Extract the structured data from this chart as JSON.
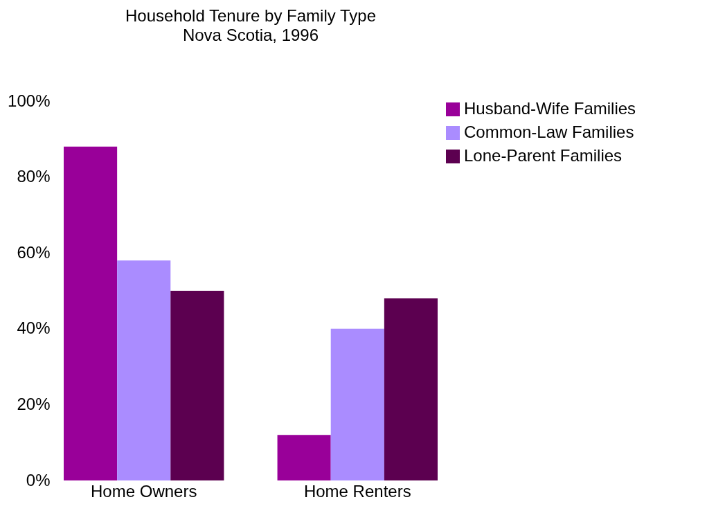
{
  "chart_data": {
    "type": "bar",
    "title": "Household Tenure by Family Type",
    "subtitle": "Nova Scotia, 1996",
    "categories": [
      "Home Owners",
      "Home Renters"
    ],
    "series": [
      {
        "name": "Husband-Wife Families",
        "color": "#990099",
        "values": [
          88,
          12
        ]
      },
      {
        "name": "Common-Law Families",
        "color": "#aa8cff",
        "values": [
          58,
          40
        ]
      },
      {
        "name": "Lone-Parent Families",
        "color": "#5c0050",
        "values": [
          50,
          48
        ]
      }
    ],
    "ylim": [
      0,
      100
    ],
    "yticks": [
      {
        "value": 0,
        "label": "0%"
      },
      {
        "value": 20,
        "label": "20%"
      },
      {
        "value": 40,
        "label": "40%"
      },
      {
        "value": 60,
        "label": "60%"
      },
      {
        "value": 80,
        "label": "80%"
      },
      {
        "value": 100,
        "label": "100%"
      }
    ],
    "grid": false,
    "legend": "top right"
  }
}
